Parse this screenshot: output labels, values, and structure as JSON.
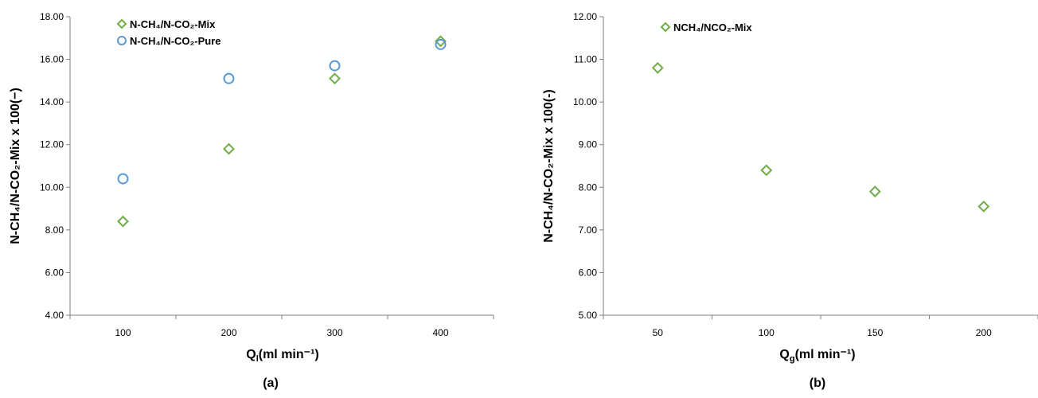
{
  "colors": {
    "mix": "#70ad47",
    "pure": "#5b9bd5",
    "axis": "#7f7f7f"
  },
  "chart_data": [
    {
      "type": "scatter",
      "panel_label": "(a)",
      "xlabel": "Q",
      "xlabel_sub": "l",
      "xlabel_tail": "(ml min⁻¹)",
      "ylabel": "N-CH₄/N-CO₂-Mix x 100(−)",
      "xlim": [
        50,
        450
      ],
      "ylim": [
        4,
        18
      ],
      "x_ticks": [
        "100",
        "200",
        "300",
        "400"
      ],
      "y_ticks": [
        "4.00",
        "6.00",
        "8.00",
        "10.00",
        "12.00",
        "14.00",
        "16.00",
        "18.00"
      ],
      "grid": false,
      "legend_position": "top-left",
      "series": [
        {
          "name": "N-CH₄/N-CO₂-Mix",
          "marker": "diamond",
          "color_key": "mix",
          "x": [
            100,
            200,
            300,
            400
          ],
          "y": [
            8.4,
            11.8,
            15.1,
            16.85
          ]
        },
        {
          "name": "N-CH₄/N-CO₂-Pure",
          "marker": "circle",
          "color_key": "pure",
          "x": [
            100,
            200,
            300,
            400
          ],
          "y": [
            10.4,
            15.1,
            15.7,
            16.7
          ]
        }
      ]
    },
    {
      "type": "scatter",
      "panel_label": "(b)",
      "xlabel": "Q",
      "xlabel_sub": "g",
      "xlabel_tail": "(ml min⁻¹)",
      "ylabel": "N-CH₄/N-CO₂-Mix x 100(-)",
      "xlim": [
        25,
        225
      ],
      "ylim": [
        5,
        12
      ],
      "x_ticks": [
        "50",
        "100",
        "150",
        "200"
      ],
      "y_ticks": [
        "5.00",
        "6.00",
        "7.00",
        "8.00",
        "9.00",
        "10.00",
        "11.00",
        "12.00"
      ],
      "grid": false,
      "legend_position": "top-left",
      "series": [
        {
          "name": "NCH₄/NCO₂-Mix",
          "marker": "diamond",
          "color_key": "mix",
          "x": [
            50,
            100,
            150,
            200
          ],
          "y": [
            10.8,
            8.4,
            7.9,
            7.55
          ]
        }
      ]
    }
  ]
}
